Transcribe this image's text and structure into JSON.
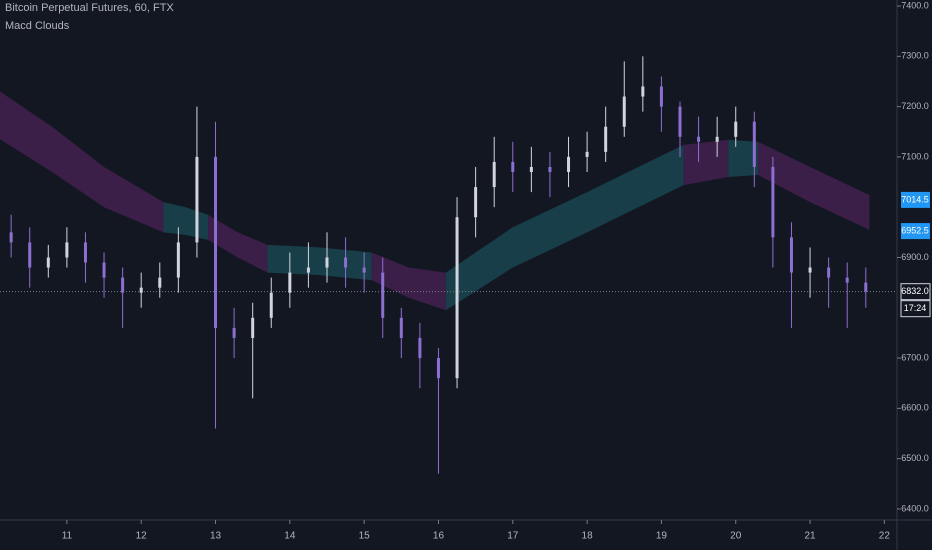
{
  "chart_data": {
    "type": "ohlc",
    "title": "Bitcoin Perpetual Futures, 60, FTX",
    "indicator": "Macd Clouds",
    "x": [
      10.25,
      10.5,
      10.75,
      11,
      11.25,
      11.5,
      11.75,
      12,
      12.25,
      12.5,
      12.75,
      13,
      13.25,
      13.5,
      13.75,
      14,
      14.25,
      14.5,
      14.75,
      15,
      15.25,
      15.5,
      15.75,
      16,
      16.25,
      16.5,
      16.75,
      17,
      17.25,
      17.5,
      17.75,
      18,
      18.25,
      18.5,
      18.75,
      19,
      19.25,
      19.5,
      19.75,
      20,
      20.25,
      20.5,
      20.75,
      21,
      21.25,
      21.5,
      21.75
    ],
    "open": [
      6950,
      6930,
      6880,
      6900,
      6930,
      6890,
      6860,
      6830,
      6840,
      6860,
      6930,
      7100,
      6760,
      6740,
      6780,
      6830,
      6870,
      6880,
      6900,
      6880,
      6870,
      6780,
      6740,
      6700,
      6660,
      6980,
      7040,
      7090,
      7070,
      7080,
      7070,
      7100,
      7110,
      7160,
      7220,
      7240,
      7200,
      7140,
      7130,
      7140,
      7170,
      7080,
      6940,
      6870,
      6880,
      6860,
      6850
    ],
    "high": [
      6985,
      6960,
      6925,
      6960,
      6950,
      6910,
      6880,
      6870,
      6890,
      6960,
      7200,
      7170,
      6800,
      6810,
      6860,
      6910,
      6930,
      6950,
      6940,
      6910,
      6900,
      6800,
      6770,
      6720,
      7020,
      7080,
      7140,
      7130,
      7120,
      7110,
      7140,
      7150,
      7200,
      7290,
      7300,
      7260,
      7210,
      7180,
      7180,
      7200,
      7190,
      7100,
      6970,
      6920,
      6900,
      6890,
      6880
    ],
    "low": [
      6900,
      6840,
      6860,
      6880,
      6850,
      6820,
      6760,
      6800,
      6820,
      6830,
      6900,
      6560,
      6700,
      6620,
      6760,
      6800,
      6840,
      6850,
      6840,
      6830,
      6740,
      6700,
      6640,
      6470,
      6640,
      6940,
      7000,
      7030,
      7030,
      7020,
      7040,
      7070,
      7090,
      7140,
      7190,
      7150,
      7100,
      7090,
      7100,
      7120,
      7040,
      6880,
      6760,
      6820,
      6800,
      6760,
      6800
    ],
    "close": [
      6930,
      6880,
      6900,
      6930,
      6890,
      6860,
      6830,
      6840,
      6860,
      6930,
      7100,
      6760,
      6740,
      6780,
      6830,
      6870,
      6880,
      6900,
      6880,
      6870,
      6780,
      6740,
      6700,
      6660,
      6980,
      7040,
      7090,
      7070,
      7080,
      7070,
      7100,
      7110,
      7160,
      7220,
      7240,
      7200,
      7140,
      7130,
      7140,
      7170,
      7080,
      6940,
      6870,
      6880,
      6860,
      6850,
      6832
    ],
    "up_color": "#d1d4dc",
    "down_color": "#8c6fd1",
    "cloud": [
      {
        "color": "#3b1f48",
        "x": [
          10.1,
          10.8,
          11.5,
          12.3
        ],
        "upper": [
          7230,
          7160,
          7080,
          7010
        ],
        "lower": [
          7135,
          7070,
          7000,
          6950
        ]
      },
      {
        "color": "#173e49",
        "x": [
          12.3,
          12.6,
          12.9
        ],
        "upper": [
          7010,
          7000,
          6985
        ],
        "lower": [
          6950,
          6945,
          6935
        ]
      },
      {
        "color": "#3b1f48",
        "x": [
          12.9,
          13.3,
          13.7
        ],
        "upper": [
          6985,
          6950,
          6925
        ],
        "lower": [
          6935,
          6900,
          6870
        ]
      },
      {
        "color": "#173e49",
        "x": [
          13.7,
          14.4,
          15.1
        ],
        "upper": [
          6925,
          6920,
          6910
        ],
        "lower": [
          6870,
          6865,
          6855
        ]
      },
      {
        "color": "#3b1f48",
        "x": [
          15.1,
          15.6,
          16.1
        ],
        "upper": [
          6910,
          6880,
          6870
        ],
        "lower": [
          6855,
          6820,
          6795
        ]
      },
      {
        "color": "#173e49",
        "x": [
          16.1,
          17,
          18,
          19.3
        ],
        "upper": [
          6870,
          6960,
          7030,
          7124
        ],
        "lower": [
          6795,
          6880,
          6950,
          7044
        ]
      },
      {
        "color": "#3b1f48",
        "x": [
          19.3,
          19.9
        ],
        "upper": [
          7124,
          7134
        ],
        "lower": [
          7044,
          7060
        ]
      },
      {
        "color": "#173e49",
        "x": [
          19.9,
          20.3
        ],
        "upper": [
          7134,
          7130
        ],
        "lower": [
          7060,
          7064
        ]
      },
      {
        "color": "#3b1f48",
        "x": [
          20.3,
          21,
          21.8
        ],
        "upper": [
          7130,
          7080,
          7024
        ],
        "lower": [
          7064,
          7010,
          6955
        ]
      }
    ],
    "price_labels": [
      {
        "value": 7014.5,
        "color": "#2196f3"
      },
      {
        "value": 6952.5,
        "color": "#2196f3"
      },
      {
        "value": {
          "value": 6832,
          "label": "6832.0"
        },
        "color": "#131722"
      }
    ],
    "countdown": "17:24",
    "xlim": [
      10.1,
      22.17
    ],
    "ylim": [
      6378,
      7412
    ],
    "xticks": [
      11,
      12,
      13,
      14,
      15,
      16,
      17,
      18,
      19,
      20,
      21,
      22
    ],
    "yticks": [
      {
        "value": 6400,
        "label": "6400.0"
      },
      {
        "value": 6500,
        "label": "6500.0"
      },
      {
        "value": 6600,
        "label": "6600.0"
      },
      {
        "value": 6700,
        "label": "6700.0"
      },
      {
        "value": 6900,
        "label": "6900.0"
      },
      {
        "value": 7100,
        "label": "7100.0"
      },
      {
        "value": 7200,
        "label": "7200.0"
      },
      {
        "value": 7300,
        "label": "7300.0"
      },
      {
        "value": 7400,
        "label": "7400.0"
      }
    ]
  }
}
